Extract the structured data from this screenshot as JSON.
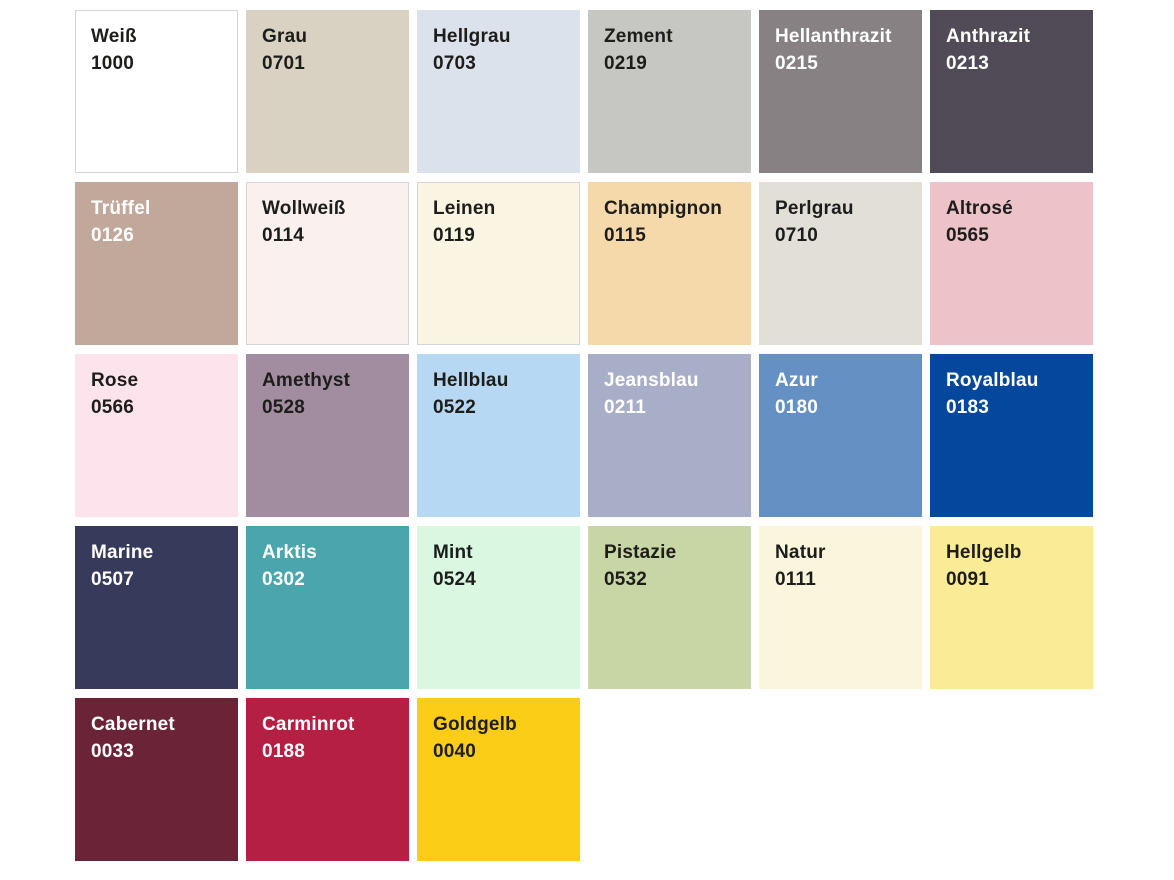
{
  "palette": {
    "background": "#ffffff",
    "text_dark": "#1d1d1b",
    "text_light": "#ffffff",
    "border_color": "#d5d5d5",
    "columns": 6,
    "swatches": [
      {
        "name": "Weiß",
        "code": "1000",
        "color": "#ffffff",
        "text": "dark",
        "border": true
      },
      {
        "name": "Grau",
        "code": "0701",
        "color": "#d9d2c3",
        "text": "dark",
        "border": false
      },
      {
        "name": "Hellgrau",
        "code": "0703",
        "color": "#dce2eb",
        "text": "dark",
        "border": false
      },
      {
        "name": "Zement",
        "code": "0219",
        "color": "#c6c6c2",
        "text": "dark",
        "border": false
      },
      {
        "name": "Hellanthrazit",
        "code": "0215",
        "color": "#878184",
        "text": "light",
        "border": false
      },
      {
        "name": "Anthrazit",
        "code": "0213",
        "color": "#504b57",
        "text": "light",
        "border": false
      },
      {
        "name": "Trüffel",
        "code": "0126",
        "color": "#c2a79b",
        "text": "light",
        "border": false
      },
      {
        "name": "Wollweiß",
        "code": "0114",
        "color": "#faf1ee",
        "text": "dark",
        "border": true
      },
      {
        "name": "Leinen",
        "code": "0119",
        "color": "#faf4e2",
        "text": "dark",
        "border": true
      },
      {
        "name": "Champignon",
        "code": "0115",
        "color": "#f5d9aa",
        "text": "dark",
        "border": false
      },
      {
        "name": "Perlgrau",
        "code": "0710",
        "color": "#e2dfd8",
        "text": "dark",
        "border": false
      },
      {
        "name": "Altrosé",
        "code": "0565",
        "color": "#edc3c9",
        "text": "dark",
        "border": false
      },
      {
        "name": "Rose",
        "code": "0566",
        "color": "#fde4ec",
        "text": "dark",
        "border": false
      },
      {
        "name": "Amethyst",
        "code": "0528",
        "color": "#a28da0",
        "text": "dark",
        "border": false
      },
      {
        "name": "Hellblau",
        "code": "0522",
        "color": "#b7d8f2",
        "text": "dark",
        "border": false
      },
      {
        "name": "Jeansblau",
        "code": "0211",
        "color": "#a9aec8",
        "text": "light",
        "border": false
      },
      {
        "name": "Azur",
        "code": "0180",
        "color": "#6590c3",
        "text": "light",
        "border": false
      },
      {
        "name": "Royalblau",
        "code": "0183",
        "color": "#03489c",
        "text": "light",
        "border": false
      },
      {
        "name": "Marine",
        "code": "0507",
        "color": "#373a5b",
        "text": "light",
        "border": false
      },
      {
        "name": "Arktis",
        "code": "0302",
        "color": "#4aa6ac",
        "text": "light",
        "border": false
      },
      {
        "name": "Mint",
        "code": "0524",
        "color": "#d9f7e1",
        "text": "dark",
        "border": false
      },
      {
        "name": "Pistazie",
        "code": "0532",
        "color": "#c8d5a4",
        "text": "dark",
        "border": false
      },
      {
        "name": "Natur",
        "code": "0111",
        "color": "#faf5dc",
        "text": "dark",
        "border": false
      },
      {
        "name": "Hellgelb",
        "code": "0091",
        "color": "#faeb96",
        "text": "dark",
        "border": false
      },
      {
        "name": "Cabernet",
        "code": "0033",
        "color": "#6b2437",
        "text": "light",
        "border": false
      },
      {
        "name": "Carminrot",
        "code": "0188",
        "color": "#b51f44",
        "text": "light",
        "border": false
      },
      {
        "name": "Goldgelb",
        "code": "0040",
        "color": "#fccd17",
        "text": "dark",
        "border": false
      }
    ]
  }
}
